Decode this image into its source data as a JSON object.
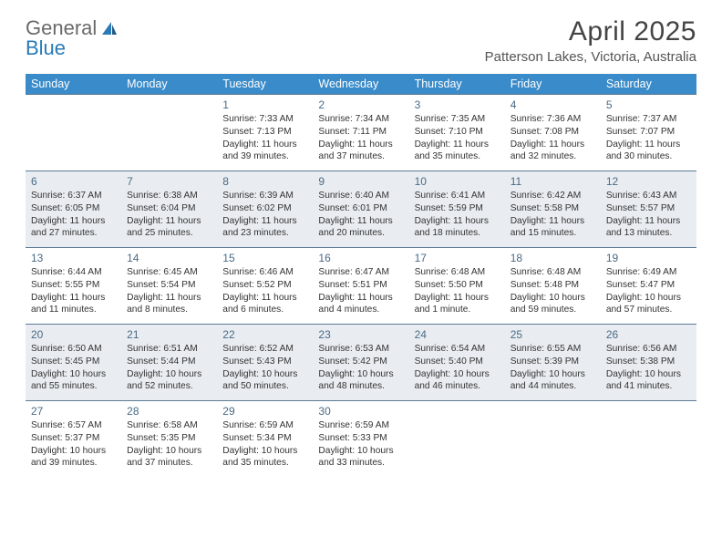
{
  "logo": {
    "text1": "General",
    "text2": "Blue"
  },
  "title": "April 2025",
  "location": "Patterson Lakes, Victoria, Australia",
  "day_headers": [
    "Sunday",
    "Monday",
    "Tuesday",
    "Wednesday",
    "Thursday",
    "Friday",
    "Saturday"
  ],
  "colors": {
    "header_bg": "#3a8bc9",
    "header_text": "#ffffff",
    "row_border": "#5a7a95",
    "alt_row_bg": "#e9edf1",
    "daynum_color": "#4a6a85",
    "body_text": "#333333",
    "logo_gray": "#6a6a6a",
    "logo_blue": "#2a7ab8"
  },
  "typography": {
    "title_fontsize": 30,
    "location_fontsize": 15,
    "dayheader_fontsize": 12.5,
    "cell_fontsize": 10.2,
    "daynum_fontsize": 12
  },
  "weeks": [
    {
      "alt": false,
      "cells": [
        {
          "day": "",
          "lines": []
        },
        {
          "day": "",
          "lines": []
        },
        {
          "day": "1",
          "lines": [
            "Sunrise: 7:33 AM",
            "Sunset: 7:13 PM",
            "Daylight: 11 hours",
            "and 39 minutes."
          ]
        },
        {
          "day": "2",
          "lines": [
            "Sunrise: 7:34 AM",
            "Sunset: 7:11 PM",
            "Daylight: 11 hours",
            "and 37 minutes."
          ]
        },
        {
          "day": "3",
          "lines": [
            "Sunrise: 7:35 AM",
            "Sunset: 7:10 PM",
            "Daylight: 11 hours",
            "and 35 minutes."
          ]
        },
        {
          "day": "4",
          "lines": [
            "Sunrise: 7:36 AM",
            "Sunset: 7:08 PM",
            "Daylight: 11 hours",
            "and 32 minutes."
          ]
        },
        {
          "day": "5",
          "lines": [
            "Sunrise: 7:37 AM",
            "Sunset: 7:07 PM",
            "Daylight: 11 hours",
            "and 30 minutes."
          ]
        }
      ]
    },
    {
      "alt": true,
      "cells": [
        {
          "day": "6",
          "lines": [
            "Sunrise: 6:37 AM",
            "Sunset: 6:05 PM",
            "Daylight: 11 hours",
            "and 27 minutes."
          ]
        },
        {
          "day": "7",
          "lines": [
            "Sunrise: 6:38 AM",
            "Sunset: 6:04 PM",
            "Daylight: 11 hours",
            "and 25 minutes."
          ]
        },
        {
          "day": "8",
          "lines": [
            "Sunrise: 6:39 AM",
            "Sunset: 6:02 PM",
            "Daylight: 11 hours",
            "and 23 minutes."
          ]
        },
        {
          "day": "9",
          "lines": [
            "Sunrise: 6:40 AM",
            "Sunset: 6:01 PM",
            "Daylight: 11 hours",
            "and 20 minutes."
          ]
        },
        {
          "day": "10",
          "lines": [
            "Sunrise: 6:41 AM",
            "Sunset: 5:59 PM",
            "Daylight: 11 hours",
            "and 18 minutes."
          ]
        },
        {
          "day": "11",
          "lines": [
            "Sunrise: 6:42 AM",
            "Sunset: 5:58 PM",
            "Daylight: 11 hours",
            "and 15 minutes."
          ]
        },
        {
          "day": "12",
          "lines": [
            "Sunrise: 6:43 AM",
            "Sunset: 5:57 PM",
            "Daylight: 11 hours",
            "and 13 minutes."
          ]
        }
      ]
    },
    {
      "alt": false,
      "cells": [
        {
          "day": "13",
          "lines": [
            "Sunrise: 6:44 AM",
            "Sunset: 5:55 PM",
            "Daylight: 11 hours",
            "and 11 minutes."
          ]
        },
        {
          "day": "14",
          "lines": [
            "Sunrise: 6:45 AM",
            "Sunset: 5:54 PM",
            "Daylight: 11 hours",
            "and 8 minutes."
          ]
        },
        {
          "day": "15",
          "lines": [
            "Sunrise: 6:46 AM",
            "Sunset: 5:52 PM",
            "Daylight: 11 hours",
            "and 6 minutes."
          ]
        },
        {
          "day": "16",
          "lines": [
            "Sunrise: 6:47 AM",
            "Sunset: 5:51 PM",
            "Daylight: 11 hours",
            "and 4 minutes."
          ]
        },
        {
          "day": "17",
          "lines": [
            "Sunrise: 6:48 AM",
            "Sunset: 5:50 PM",
            "Daylight: 11 hours",
            "and 1 minute."
          ]
        },
        {
          "day": "18",
          "lines": [
            "Sunrise: 6:48 AM",
            "Sunset: 5:48 PM",
            "Daylight: 10 hours",
            "and 59 minutes."
          ]
        },
        {
          "day": "19",
          "lines": [
            "Sunrise: 6:49 AM",
            "Sunset: 5:47 PM",
            "Daylight: 10 hours",
            "and 57 minutes."
          ]
        }
      ]
    },
    {
      "alt": true,
      "cells": [
        {
          "day": "20",
          "lines": [
            "Sunrise: 6:50 AM",
            "Sunset: 5:45 PM",
            "Daylight: 10 hours",
            "and 55 minutes."
          ]
        },
        {
          "day": "21",
          "lines": [
            "Sunrise: 6:51 AM",
            "Sunset: 5:44 PM",
            "Daylight: 10 hours",
            "and 52 minutes."
          ]
        },
        {
          "day": "22",
          "lines": [
            "Sunrise: 6:52 AM",
            "Sunset: 5:43 PM",
            "Daylight: 10 hours",
            "and 50 minutes."
          ]
        },
        {
          "day": "23",
          "lines": [
            "Sunrise: 6:53 AM",
            "Sunset: 5:42 PM",
            "Daylight: 10 hours",
            "and 48 minutes."
          ]
        },
        {
          "day": "24",
          "lines": [
            "Sunrise: 6:54 AM",
            "Sunset: 5:40 PM",
            "Daylight: 10 hours",
            "and 46 minutes."
          ]
        },
        {
          "day": "25",
          "lines": [
            "Sunrise: 6:55 AM",
            "Sunset: 5:39 PM",
            "Daylight: 10 hours",
            "and 44 minutes."
          ]
        },
        {
          "day": "26",
          "lines": [
            "Sunrise: 6:56 AM",
            "Sunset: 5:38 PM",
            "Daylight: 10 hours",
            "and 41 minutes."
          ]
        }
      ]
    },
    {
      "alt": false,
      "cells": [
        {
          "day": "27",
          "lines": [
            "Sunrise: 6:57 AM",
            "Sunset: 5:37 PM",
            "Daylight: 10 hours",
            "and 39 minutes."
          ]
        },
        {
          "day": "28",
          "lines": [
            "Sunrise: 6:58 AM",
            "Sunset: 5:35 PM",
            "Daylight: 10 hours",
            "and 37 minutes."
          ]
        },
        {
          "day": "29",
          "lines": [
            "Sunrise: 6:59 AM",
            "Sunset: 5:34 PM",
            "Daylight: 10 hours",
            "and 35 minutes."
          ]
        },
        {
          "day": "30",
          "lines": [
            "Sunrise: 6:59 AM",
            "Sunset: 5:33 PM",
            "Daylight: 10 hours",
            "and 33 minutes."
          ]
        },
        {
          "day": "",
          "lines": []
        },
        {
          "day": "",
          "lines": []
        },
        {
          "day": "",
          "lines": []
        }
      ]
    }
  ]
}
